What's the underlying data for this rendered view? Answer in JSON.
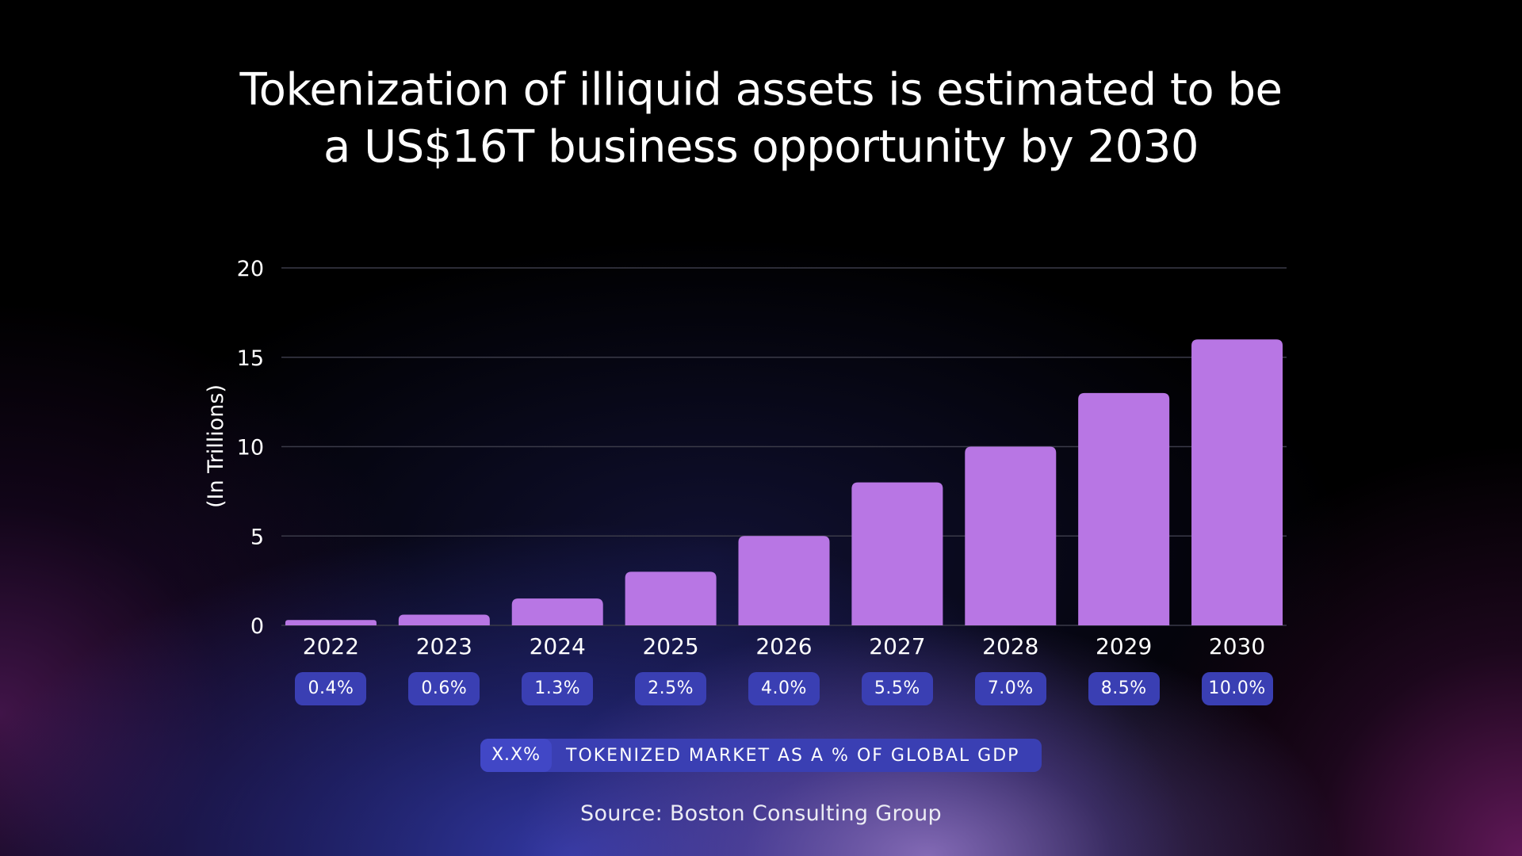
{
  "title": {
    "line1": "Tokenization of illiquid assets is estimated to be",
    "line2": "a US$16T  business opportunity by 2030"
  },
  "source": "Source: Boston Consulting Group",
  "legend": {
    "swatch_text": "X.X%",
    "label": "TOKENIZED MARKET AS A % OF GLOBAL GDP"
  },
  "colors": {
    "bar": "#b876e4",
    "pill": "#3a3fb3",
    "gridline": "#3a3a48",
    "axis_text": "#ffffff"
  },
  "chart_data": {
    "type": "bar",
    "title": "Tokenization of illiquid assets is estimated to be a US$16T  business opportunity by 2030",
    "ylabel": "(In Trillions)",
    "xlabel": "",
    "ylim": [
      0,
      20
    ],
    "yticks": [
      0,
      5,
      10,
      15,
      20
    ],
    "grid": true,
    "categories": [
      "2022",
      "2023",
      "2024",
      "2025",
      "2026",
      "2027",
      "2028",
      "2029",
      "2030"
    ],
    "values": [
      0.3,
      0.6,
      1.5,
      3.0,
      5.0,
      8.0,
      10.0,
      13.0,
      16.0
    ],
    "gdp_share_labels": [
      "0.4%",
      "0.6%",
      "1.3%",
      "2.5%",
      "4.0%",
      "5.5%",
      "7.0%",
      "8.5%",
      "10.0%"
    ]
  }
}
